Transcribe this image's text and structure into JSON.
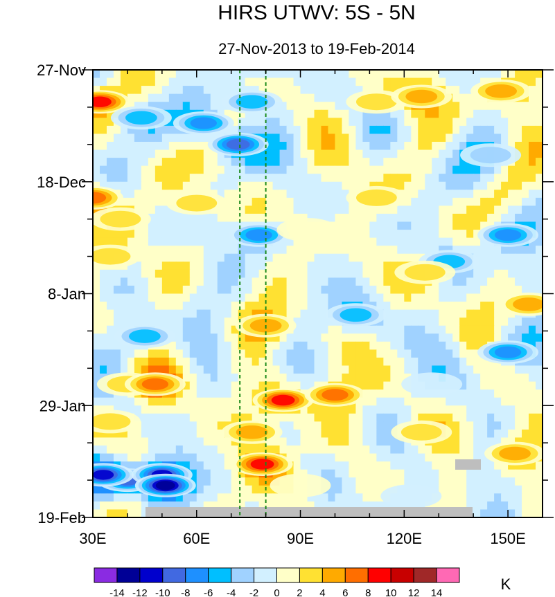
{
  "chart_data": {
    "type": "heatmap",
    "title": "HIRS UTWV: 5S - 5N",
    "subtitle": "27-Nov-2013 to 19-Feb-2014",
    "xlabel": "",
    "ylabel": "",
    "x_ticks": [
      {
        "value": 30,
        "label": "30E"
      },
      {
        "value": 60,
        "label": "60E"
      },
      {
        "value": 90,
        "label": "90E"
      },
      {
        "value": 120,
        "label": "120E"
      },
      {
        "value": 150,
        "label": "150E"
      }
    ],
    "xlim": [
      30,
      160
    ],
    "y_ticks": [
      {
        "day": 0,
        "label": "27-Nov"
      },
      {
        "day": 21,
        "label": "18-Dec"
      },
      {
        "day": 42,
        "label": "8-Jan"
      },
      {
        "day": 63,
        "label": "29-Jan"
      },
      {
        "day": 84,
        "label": "19-Feb"
      }
    ],
    "ylim_days": [
      0,
      84
    ],
    "y_direction": "time increases downward",
    "reference_lines_lon": [
      72.5,
      80
    ],
    "reference_line_color": "#1a8a1a",
    "colorbar": {
      "levels": [
        -14,
        -12,
        -10,
        -8,
        -6,
        -4,
        -2,
        0,
        2,
        4,
        6,
        8,
        10,
        12,
        14
      ],
      "colors": [
        "#8a2be2",
        "#000096",
        "#0000cd",
        "#4169e1",
        "#1e90ff",
        "#00bfff",
        "#a0d2ff",
        "#d2f0ff",
        "#ffffc8",
        "#ffe132",
        "#ffaa00",
        "#ff6e00",
        "#ff0000",
        "#c80000",
        "#a02828",
        "#ff69b4"
      ],
      "unit": "K"
    },
    "missing_color": "#bebebe",
    "anomaly_features": [
      {
        "lon": 32,
        "day": 6,
        "value": 10
      },
      {
        "lon": 44,
        "day": 9,
        "value": -6
      },
      {
        "lon": 62,
        "day": 10,
        "value": -8
      },
      {
        "lon": 72,
        "day": 14,
        "value": -10
      },
      {
        "lon": 76,
        "day": 6,
        "value": -6
      },
      {
        "lon": 112,
        "day": 6,
        "value": 5
      },
      {
        "lon": 125,
        "day": 5,
        "value": 7
      },
      {
        "lon": 148,
        "day": 4,
        "value": 6
      },
      {
        "lon": 145,
        "day": 16,
        "value": -5
      },
      {
        "lon": 30,
        "day": 24,
        "value": 9
      },
      {
        "lon": 38,
        "day": 28,
        "value": 5
      },
      {
        "lon": 60,
        "day": 25,
        "value": 4
      },
      {
        "lon": 78,
        "day": 31,
        "value": -8
      },
      {
        "lon": 92,
        "day": 30,
        "value": 3
      },
      {
        "lon": 112,
        "day": 24,
        "value": 4
      },
      {
        "lon": 150,
        "day": 31,
        "value": -8
      },
      {
        "lon": 133,
        "day": 36,
        "value": -6
      },
      {
        "lon": 35,
        "day": 35,
        "value": 4
      },
      {
        "lon": 126,
        "day": 38,
        "value": 5
      },
      {
        "lon": 156,
        "day": 44,
        "value": 6
      },
      {
        "lon": 80,
        "day": 48,
        "value": 7
      },
      {
        "lon": 106,
        "day": 46,
        "value": -7
      },
      {
        "lon": 45,
        "day": 50,
        "value": -7
      },
      {
        "lon": 150,
        "day": 53,
        "value": -8
      },
      {
        "lon": 40,
        "day": 59,
        "value": 5
      },
      {
        "lon": 48,
        "day": 59,
        "value": 9
      },
      {
        "lon": 85,
        "day": 62,
        "value": 10
      },
      {
        "lon": 100,
        "day": 61,
        "value": 9
      },
      {
        "lon": 128,
        "day": 59,
        "value": -3
      },
      {
        "lon": 35,
        "day": 66,
        "value": 5
      },
      {
        "lon": 76,
        "day": 68,
        "value": 7
      },
      {
        "lon": 125,
        "day": 68,
        "value": 5
      },
      {
        "lon": 79,
        "day": 74,
        "value": 10
      },
      {
        "lon": 90,
        "day": 78,
        "value": 3
      },
      {
        "lon": 152,
        "day": 72,
        "value": 6
      },
      {
        "lon": 40,
        "day": 77,
        "value": -11
      },
      {
        "lon": 50,
        "day": 76,
        "value": -12
      },
      {
        "lon": 33,
        "day": 76,
        "value": -13
      },
      {
        "lon": 51,
        "day": 78,
        "value": -14
      },
      {
        "lon": 122,
        "day": 80,
        "value": -3
      }
    ]
  }
}
